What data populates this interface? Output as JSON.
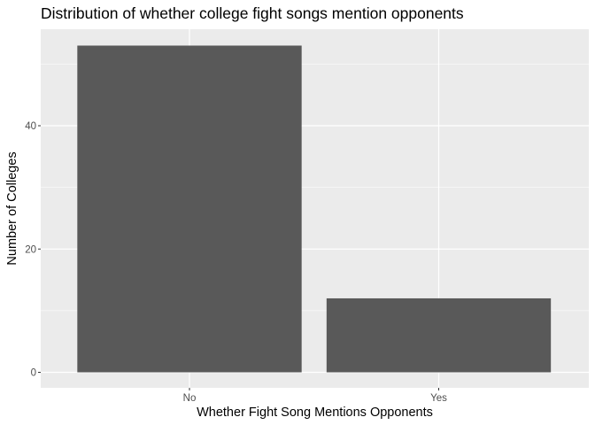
{
  "chart_data": {
    "type": "bar",
    "title": "Distribution of whether college fight songs mention opponents",
    "xlabel": "Whether Fight Song Mentions Opponents",
    "ylabel": "Number of Colleges",
    "categories": [
      "No",
      "Yes"
    ],
    "values": [
      53,
      12
    ],
    "ylim": [
      0,
      55.65
    ],
    "yticks": [
      0,
      20,
      40
    ],
    "grid": true,
    "legend": "none",
    "colors": {
      "bar": "#595959",
      "panel": "#ebebeb",
      "grid_major": "#ffffff",
      "tick_text": "#4d4d4d"
    }
  }
}
